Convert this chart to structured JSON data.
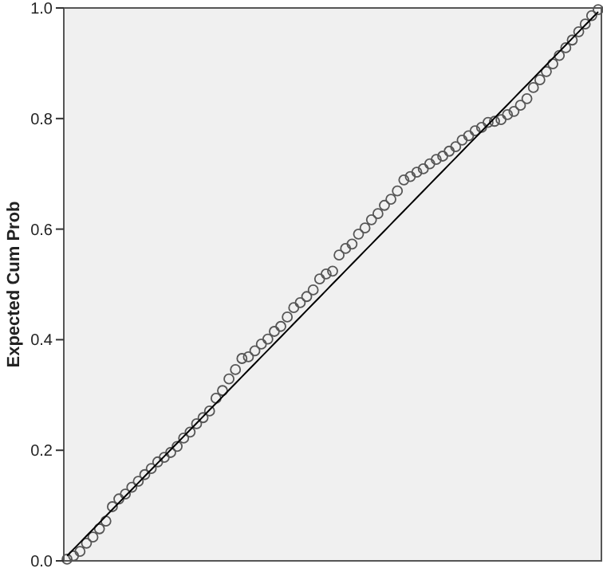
{
  "chart_data": {
    "type": "scatter",
    "ylabel": "Expected Cum Prob",
    "ylim": [
      0,
      1
    ],
    "categories": [
      null,
      null,
      null,
      null,
      null,
      null,
      null,
      null,
      null,
      null,
      null,
      null,
      null,
      null,
      null,
      null,
      null,
      null,
      null,
      null,
      null,
      null,
      null,
      null,
      null,
      null,
      null,
      null,
      null,
      null,
      null,
      null,
      null,
      null,
      null,
      null,
      null,
      null,
      null,
      null,
      null,
      null,
      null,
      null,
      null,
      null,
      null,
      null,
      null,
      null,
      null,
      null,
      null,
      null,
      null,
      null,
      null,
      null,
      null,
      null,
      null,
      null,
      null,
      null,
      null,
      null,
      null,
      null,
      null,
      null,
      null,
      null,
      null,
      null,
      null,
      null,
      null,
      null,
      null,
      null,
      null,
      null,
      null
    ],
    "yticks": [
      {
        "value": 0,
        "label": "0.0"
      },
      {
        "value": 0.2,
        "label": "0.2"
      },
      {
        "value": 0.4,
        "label": "0.4"
      },
      {
        "value": 0.6,
        "label": "0.6"
      },
      {
        "value": 0.8,
        "label": "0.8"
      },
      {
        "value": 1,
        "label": "1.0"
      }
    ],
    "tick_labels": "y",
    "grid": false,
    "marker": "circle",
    "series": [
      {
        "color": "#555555",
        "values": [
          0.003,
          0.009,
          0.017,
          0.032,
          0.043,
          0.058,
          0.072,
          0.098,
          0.112,
          0.121,
          0.133,
          0.144,
          0.156,
          0.167,
          0.179,
          0.187,
          0.196,
          0.207,
          0.222,
          0.233,
          0.248,
          0.259,
          0.271,
          0.294,
          0.308,
          0.329,
          0.346,
          0.366,
          0.369,
          0.38,
          0.392,
          0.401,
          0.415,
          0.424,
          0.441,
          0.458,
          0.467,
          0.478,
          0.49,
          0.51,
          0.519,
          0.524,
          0.553,
          0.565,
          0.573,
          0.591,
          0.602,
          0.617,
          0.628,
          0.643,
          0.654,
          0.669,
          0.689,
          0.695,
          0.703,
          0.709,
          0.718,
          0.726,
          0.732,
          0.741,
          0.749,
          0.761,
          0.769,
          0.778,
          0.784,
          0.793,
          0.795,
          0.798,
          0.807,
          0.813,
          0.824,
          0.836,
          0.856,
          0.87,
          0.885,
          0.899,
          0.914,
          0.928,
          0.942,
          0.957,
          0.971,
          0.986,
          0.997
        ]
      },
      {
        "type": "line",
        "marker": "none",
        "color": "#000000",
        "values": [
          0.009,
          0.021,
          0.033,
          0.045,
          0.057,
          0.069,
          0.081,
          0.093,
          0.105,
          0.117,
          0.129,
          0.141,
          0.153,
          0.165,
          0.177,
          0.189,
          0.201,
          0.213,
          0.225,
          0.237,
          0.249,
          0.261,
          0.273,
          0.285,
          0.297,
          0.309,
          0.321,
          0.333,
          0.345,
          0.357,
          0.369,
          0.381,
          0.393,
          0.405,
          0.417,
          0.429,
          0.441,
          0.453,
          0.465,
          0.477,
          0.489,
          0.501,
          0.513,
          0.525,
          0.537,
          0.549,
          0.561,
          0.573,
          0.585,
          0.597,
          0.609,
          0.621,
          0.633,
          0.645,
          0.657,
          0.669,
          0.681,
          0.693,
          0.705,
          0.717,
          0.729,
          0.741,
          0.753,
          0.765,
          0.777,
          0.789,
          0.801,
          0.813,
          0.825,
          0.837,
          0.849,
          0.861,
          0.873,
          0.885,
          0.897,
          0.909,
          0.921,
          0.933,
          0.945,
          0.957,
          0.969,
          0.981,
          0.993
        ]
      }
    ]
  }
}
